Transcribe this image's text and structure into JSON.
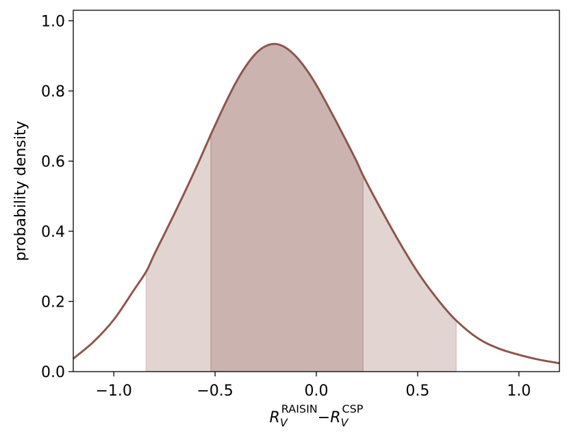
{
  "chart_data": {
    "type": "area",
    "title": "",
    "xlabel": {
      "base": "R",
      "subscript": "V",
      "sup1": "RAISIN",
      "sup2": "CSP",
      "minus": "−"
    },
    "ylabel": "probability density",
    "xlim": [
      -1.2,
      1.2
    ],
    "ylim": [
      0.0,
      1.03
    ],
    "xticks": [
      {
        "value": -1.0,
        "label": "−1.0"
      },
      {
        "value": -0.5,
        "label": "−0.5"
      },
      {
        "value": 0.0,
        "label": "0.0"
      },
      {
        "value": 0.5,
        "label": "0.5"
      },
      {
        "value": 1.0,
        "label": "1.0"
      }
    ],
    "yticks": [
      {
        "value": 0.0,
        "label": "0.0"
      },
      {
        "value": 0.2,
        "label": "0.2"
      },
      {
        "value": 0.4,
        "label": "0.4"
      },
      {
        "value": 0.6,
        "label": "0.6"
      },
      {
        "value": 0.8,
        "label": "0.8"
      },
      {
        "value": 1.0,
        "label": "1.0"
      }
    ],
    "grid": false,
    "series": [
      {
        "x": [
          -1.2,
          -1.1,
          -1.0,
          -0.9,
          -0.84,
          -0.8,
          -0.7,
          -0.6,
          -0.52,
          -0.5,
          -0.45,
          -0.4,
          -0.35,
          -0.3,
          -0.25,
          -0.2,
          -0.15,
          -0.1,
          -0.05,
          0.0,
          0.05,
          0.1,
          0.15,
          0.2,
          0.23,
          0.3,
          0.4,
          0.5,
          0.6,
          0.69,
          0.8,
          0.9,
          1.0,
          1.1,
          1.2
        ],
        "y": [
          0.037,
          0.085,
          0.148,
          0.233,
          0.285,
          0.334,
          0.451,
          0.573,
          0.677,
          0.702,
          0.764,
          0.821,
          0.869,
          0.906,
          0.928,
          0.934,
          0.923,
          0.898,
          0.862,
          0.817,
          0.765,
          0.711,
          0.655,
          0.598,
          0.56,
          0.483,
          0.379,
          0.284,
          0.205,
          0.146,
          0.094,
          0.066,
          0.048,
          0.034,
          0.024
        ]
      }
    ],
    "intervals": [
      {
        "from": -0.84,
        "to": 0.69,
        "fill": "#e2d4d1"
      },
      {
        "from": -0.52,
        "to": 0.23,
        "fill": "#cbb3b0"
      }
    ],
    "colors": {
      "line": "#8c564b",
      "outer_fill": "#e2d4d1",
      "inner_fill": "#cbb3b0"
    }
  }
}
